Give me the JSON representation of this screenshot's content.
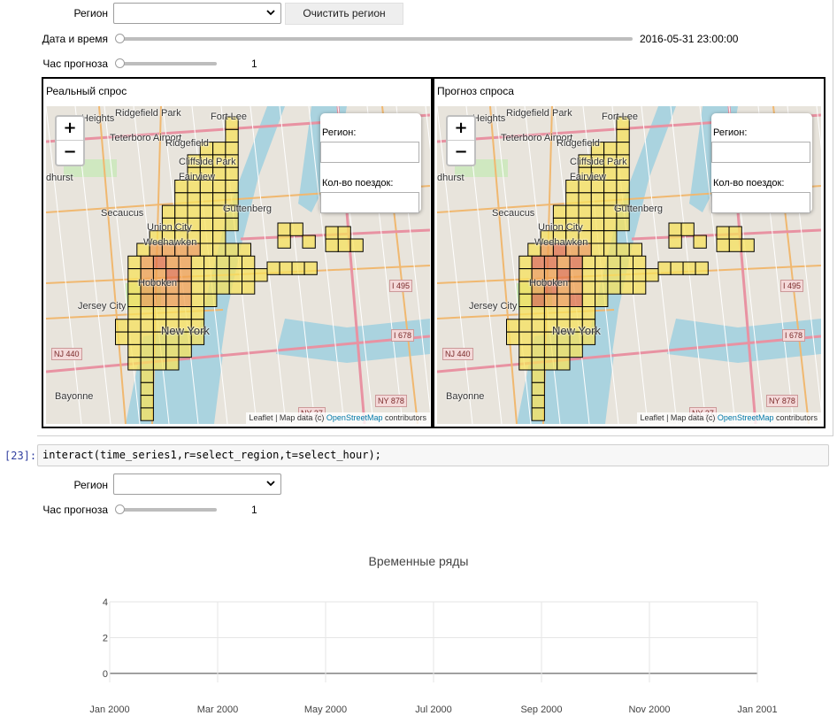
{
  "widgets_top": {
    "region_label": "Регион",
    "region_value": "",
    "clear_button": "Очистить регион",
    "datetime_label": "Дата и время",
    "datetime_value": "2016-05-31 23:00:00",
    "datetime_fraction": 0.0,
    "hour_label": "Час прогноза",
    "hour_value": "1",
    "hour_fraction": 0.0
  },
  "maps": [
    {
      "title": "Реальный спрос",
      "info_region_label": "Регион:",
      "info_count_label": "Кол-во поездок:",
      "zoom_in": "+",
      "zoom_out": "−",
      "attribution_leaflet": "Leaflet",
      "attribution_mid": " | Map data (c) ",
      "attribution_osm": "OpenStreetMap",
      "attribution_end": " contributors"
    },
    {
      "title": "Прогноз спроса",
      "info_region_label": "Регион:",
      "info_count_label": "Кол-во поездок:",
      "zoom_in": "+",
      "zoom_out": "−",
      "attribution_leaflet": "Leaflet",
      "attribution_mid": " | Map data (c) ",
      "attribution_osm": "OpenStreetMap",
      "attribution_end": " contributors"
    }
  ],
  "map_place_labels": [
    "Heights",
    "Ridgefield Park",
    "Teterboro Airport",
    "Fort Lee",
    "Ridgefield",
    "Cliffside Park",
    "Fairview",
    "Secaucus",
    "Guttenberg",
    "Union City",
    "Weehawken",
    "Hoboken",
    "Jersey City",
    "New York",
    "Bayonne",
    "dhurst"
  ],
  "map_shields": [
    "I 495",
    "I 678",
    "NJ 440",
    "NY 878",
    "NY 27"
  ],
  "code_cell": {
    "prompt": "[23]:",
    "code": "interact(time_series1,r=select_region,t=select_hour);"
  },
  "widgets_bottom": {
    "region_label": "Регион",
    "region_value": "",
    "hour_label": "Час прогноза",
    "hour_value": "1",
    "hour_fraction": 0.0
  },
  "chart_data": {
    "type": "line",
    "title": "Временные ряды",
    "xlabel": "",
    "ylabel": "",
    "x_ticks": [
      "Jan 2000",
      "Mar 2000",
      "May 2000",
      "Jul 2000",
      "Sep 2000",
      "Nov 2000",
      "Jan 2001"
    ],
    "y_ticks": [
      "0",
      "2",
      "4"
    ],
    "xlim": [
      "2000-01-01",
      "2001-01-01"
    ],
    "ylim": [
      -0.5,
      4
    ],
    "grid": true,
    "series": []
  },
  "colors": {
    "prompt": "#303f9f",
    "cell_low": "#f7e25c",
    "cell_mid": "#f0a050",
    "cell_high": "#e0704a"
  }
}
